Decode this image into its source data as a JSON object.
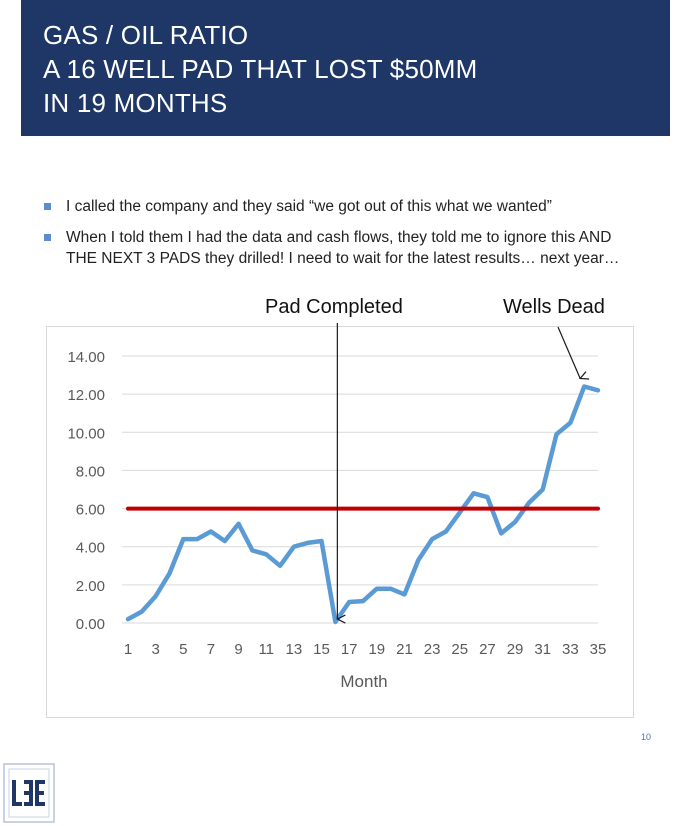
{
  "title": {
    "lines": [
      "GAS / OIL RATIO",
      "A 16 WELL PAD THAT LOST $50MM",
      "IN 19 MONTHS"
    ]
  },
  "bullets": [
    {
      "text": "I called the company and they said “we got out of this what we wanted”"
    },
    {
      "text": "When I told them I had the data and cash flows, they told me to ignore this AND THE NEXT 3 PADS they drilled!  I need to wait for the latest results… next year…"
    }
  ],
  "annotations": {
    "pad_completed": "Pad Completed",
    "wells_dead": "Wells Dead"
  },
  "page_number": "10",
  "colors": {
    "title_bg": "#1f3766",
    "series_line": "#5b9bd5",
    "threshold_line": "#c00000",
    "bullet_marker": "#5b8ccc"
  },
  "chart_data": {
    "type": "line",
    "title": "",
    "xlabel": "Month",
    "ylabel": "",
    "x": [
      1,
      2,
      3,
      4,
      5,
      6,
      7,
      8,
      9,
      10,
      11,
      12,
      13,
      14,
      15,
      16,
      17,
      18,
      19,
      20,
      21,
      22,
      23,
      24,
      25,
      26,
      27,
      28,
      29,
      30,
      31,
      32,
      33,
      34,
      35
    ],
    "x_tick_labels": [
      "1",
      "3",
      "5",
      "7",
      "9",
      "11",
      "13",
      "15",
      "17",
      "19",
      "21",
      "23",
      "25",
      "27",
      "29",
      "31",
      "33",
      "35"
    ],
    "ylim": [
      0,
      14
    ],
    "y_tick_labels": [
      "0.00",
      "2.00",
      "4.00",
      "6.00",
      "8.00",
      "10.00",
      "12.00",
      "14.00"
    ],
    "grid": "horizontal",
    "series": [
      {
        "values": [
          0.2,
          0.6,
          1.4,
          2.6,
          4.4,
          4.4,
          4.8,
          4.3,
          5.2,
          3.8,
          3.6,
          3.0,
          4.0,
          4.2,
          4.3,
          0.05,
          1.1,
          1.15,
          1.8,
          1.8,
          1.5,
          3.3,
          4.4,
          4.8,
          5.8,
          6.8,
          6.6,
          4.7,
          5.3,
          6.3,
          7.0,
          9.9,
          10.5,
          12.4,
          12.2
        ],
        "color": "#5b9bd5"
      },
      {
        "values": [
          6.0,
          6.0,
          6.0,
          6.0,
          6.0,
          6.0,
          6.0,
          6.0,
          6.0,
          6.0,
          6.0,
          6.0,
          6.0,
          6.0,
          6.0,
          6.0,
          6.0,
          6.0,
          6.0,
          6.0,
          6.0,
          6.0,
          6.0,
          6.0,
          6.0,
          6.0,
          6.0,
          6.0,
          6.0,
          6.0,
          6.0,
          6.0,
          6.0,
          6.0,
          6.0
        ],
        "color": "#c00000"
      }
    ],
    "annotation_targets": {
      "pad_completed_x": 16,
      "wells_dead_x": 34
    }
  }
}
